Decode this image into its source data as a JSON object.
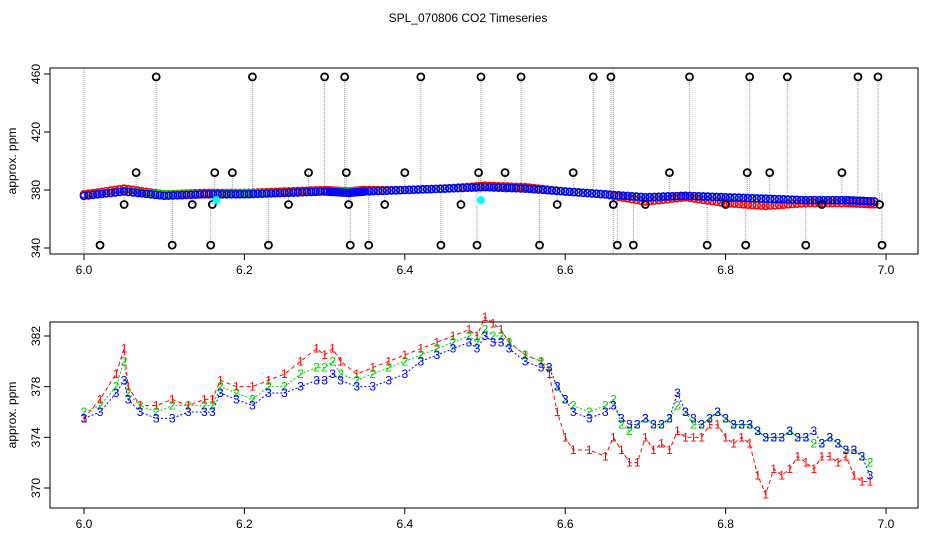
{
  "chart_data": [
    {
      "type": "scatter",
      "title": "SPL_070806  CO2 Timeseries",
      "xlabel": "",
      "ylabel": "approx. ppm",
      "xlim": [
        6.0,
        7.0
      ],
      "ylim": [
        340,
        460
      ],
      "x_ticks": [
        "6.0",
        "6.2",
        "6.4",
        "6.6",
        "6.8",
        "7.0"
      ],
      "y_ticks": [
        "340",
        "380",
        "420",
        "460"
      ],
      "colors": {
        "series1": "#ff0000",
        "series2": "#00cc00",
        "series3": "#0000ff",
        "spike": "#000000",
        "marker": "#00ffff",
        "dropline": "#999999"
      },
      "series": [
        {
          "name": "1",
          "color": "#ff0000",
          "x": [
            6.0,
            6.05,
            6.1,
            6.15,
            6.2,
            6.25,
            6.3,
            6.33,
            6.35,
            6.4,
            6.45,
            6.5,
            6.55,
            6.6,
            6.65,
            6.7,
            6.75,
            6.8,
            6.85,
            6.9,
            6.95,
            6.99
          ],
          "y": [
            377,
            381,
            377,
            378,
            378,
            379,
            380,
            379,
            380,
            380,
            381,
            383,
            382,
            379,
            377,
            372,
            375,
            371,
            369,
            371,
            371,
            370
          ]
        },
        {
          "name": "2",
          "color": "#00cc00",
          "x": [
            6.0,
            6.05,
            6.1,
            6.15,
            6.2,
            6.25,
            6.3,
            6.33,
            6.35,
            6.4,
            6.45,
            6.5,
            6.55,
            6.6,
            6.65,
            6.7,
            6.75,
            6.8,
            6.85,
            6.9,
            6.95,
            6.99
          ],
          "y": [
            376,
            379,
            377,
            377,
            378,
            378,
            379,
            379,
            379,
            380,
            381,
            382,
            381,
            379,
            377,
            375,
            376,
            375,
            374,
            373,
            373,
            372
          ]
        },
        {
          "name": "3",
          "color": "#0000ff",
          "x": [
            6.0,
            6.05,
            6.1,
            6.15,
            6.2,
            6.25,
            6.3,
            6.33,
            6.35,
            6.4,
            6.45,
            6.5,
            6.55,
            6.6,
            6.65,
            6.7,
            6.75,
            6.8,
            6.85,
            6.9,
            6.95,
            6.99
          ],
          "y": [
            376,
            379,
            376,
            377,
            377,
            378,
            379,
            378,
            379,
            380,
            381,
            382,
            381,
            379,
            377,
            375,
            376,
            375,
            374,
            373,
            373,
            372
          ]
        }
      ],
      "spikes": {
        "x": [
          6.02,
          6.05,
          6.065,
          6.09,
          6.11,
          6.135,
          6.158,
          6.16,
          6.163,
          6.185,
          6.21,
          6.23,
          6.255,
          6.28,
          6.3,
          6.325,
          6.327,
          6.33,
          6.332,
          6.355,
          6.375,
          6.4,
          6.42,
          6.445,
          6.47,
          6.49,
          6.492,
          6.495,
          6.525,
          6.545,
          6.568,
          6.59,
          6.61,
          6.635,
          6.657,
          6.66,
          6.665,
          6.685,
          6.7,
          6.73,
          6.755,
          6.777,
          6.8,
          6.825,
          6.827,
          6.83,
          6.855,
          6.877,
          6.9,
          6.92,
          6.945,
          6.965,
          6.99,
          6.992,
          6.995
        ],
        "y": [
          342,
          370,
          392,
          458,
          342,
          370,
          342,
          370,
          392,
          392,
          458,
          342,
          370,
          392,
          458,
          458,
          392,
          370,
          342,
          342,
          370,
          392,
          458,
          342,
          370,
          342,
          392,
          458,
          392,
          458,
          342,
          370,
          392,
          458,
          458,
          370,
          342,
          342,
          370,
          392,
          458,
          342,
          370,
          342,
          392,
          458,
          392,
          458,
          342,
          370,
          392,
          458,
          458,
          370,
          342
        ]
      },
      "cyan_markers": {
        "x": [
          6.165,
          6.495
        ],
        "y": [
          373,
          373
        ]
      }
    },
    {
      "type": "line",
      "title": "",
      "xlabel": "",
      "ylabel": "approx. ppm",
      "xlim": [
        6.0,
        7.0
      ],
      "ylim": [
        369,
        384
      ],
      "x_ticks": [
        "6.0",
        "6.2",
        "6.4",
        "6.6",
        "6.8",
        "7.0"
      ],
      "y_ticks": [
        "370",
        "374",
        "378",
        "382"
      ],
      "point_labels": [
        "1",
        "2",
        "3"
      ],
      "series": [
        {
          "name": "1",
          "color": "#ff0000",
          "x": [
            6.0,
            6.02,
            6.04,
            6.05,
            6.055,
            6.07,
            6.09,
            6.11,
            6.13,
            6.15,
            6.16,
            6.17,
            6.19,
            6.21,
            6.23,
            6.25,
            6.27,
            6.29,
            6.3,
            6.31,
            6.32,
            6.34,
            6.36,
            6.38,
            6.4,
            6.42,
            6.44,
            6.46,
            6.48,
            6.49,
            6.5,
            6.51,
            6.52,
            6.53,
            6.55,
            6.57,
            6.58,
            6.59,
            6.6,
            6.61,
            6.63,
            6.65,
            6.66,
            6.67,
            6.68,
            6.69,
            6.7,
            6.71,
            6.72,
            6.73,
            6.74,
            6.75,
            6.76,
            6.77,
            6.78,
            6.79,
            6.8,
            6.81,
            6.82,
            6.83,
            6.84,
            6.85,
            6.86,
            6.87,
            6.88,
            6.89,
            6.9,
            6.91,
            6.92,
            6.93,
            6.94,
            6.95,
            6.96,
            6.97,
            6.98
          ],
          "y": [
            375.5,
            377,
            379,
            381,
            378,
            376.5,
            376.5,
            377,
            376.5,
            377,
            377,
            378.5,
            378,
            378,
            378.5,
            379,
            380,
            381,
            380.5,
            381,
            380,
            379,
            379.5,
            380,
            380.5,
            381,
            381.5,
            382,
            382.5,
            382,
            383.5,
            383,
            382.5,
            381.5,
            380.5,
            380,
            379,
            376,
            374,
            373,
            373,
            372.5,
            374,
            373,
            372,
            372,
            374,
            373,
            373.5,
            373,
            374.5,
            374,
            374,
            374,
            375,
            375,
            374,
            373.5,
            374,
            373.5,
            371,
            369.5,
            371.5,
            371,
            371.5,
            372.5,
            372,
            371.5,
            372.5,
            372.5,
            372,
            372.5,
            371,
            370.5,
            370.5
          ]
        },
        {
          "name": "2",
          "color": "#00cc00",
          "x": [
            6.0,
            6.02,
            6.04,
            6.05,
            6.055,
            6.07,
            6.09,
            6.11,
            6.13,
            6.15,
            6.16,
            6.17,
            6.19,
            6.21,
            6.23,
            6.25,
            6.27,
            6.29,
            6.3,
            6.31,
            6.32,
            6.34,
            6.36,
            6.38,
            6.4,
            6.42,
            6.44,
            6.46,
            6.48,
            6.49,
            6.5,
            6.51,
            6.52,
            6.53,
            6.55,
            6.57,
            6.58,
            6.59,
            6.6,
            6.61,
            6.63,
            6.65,
            6.66,
            6.67,
            6.68,
            6.69,
            6.7,
            6.71,
            6.72,
            6.73,
            6.74,
            6.75,
            6.76,
            6.77,
            6.78,
            6.79,
            6.8,
            6.81,
            6.82,
            6.83,
            6.84,
            6.85,
            6.86,
            6.87,
            6.88,
            6.89,
            6.9,
            6.91,
            6.92,
            6.93,
            6.94,
            6.95,
            6.96,
            6.97,
            6.98
          ],
          "y": [
            376,
            376.5,
            378,
            380,
            377.5,
            376.5,
            376,
            376.5,
            376.5,
            376.5,
            376.5,
            378,
            377.5,
            377,
            378,
            378,
            379,
            379.5,
            379.5,
            380,
            379,
            378.5,
            379,
            379.5,
            380,
            380.5,
            381,
            381.5,
            382,
            381.5,
            382.5,
            382,
            382,
            381.5,
            380.5,
            380,
            379.5,
            378,
            377,
            376.5,
            376,
            376.5,
            377,
            375,
            374.5,
            375,
            375.5,
            375,
            375,
            375.5,
            376.5,
            376,
            375,
            375,
            375.5,
            376,
            375.5,
            375,
            375,
            375,
            374.5,
            374,
            374,
            374,
            374.5,
            374,
            374,
            373.5,
            373.5,
            374,
            373.5,
            373,
            373,
            372.5,
            372
          ]
        },
        {
          "name": "3",
          "color": "#0000ff",
          "x": [
            6.0,
            6.02,
            6.04,
            6.05,
            6.055,
            6.07,
            6.09,
            6.11,
            6.13,
            6.15,
            6.16,
            6.17,
            6.19,
            6.21,
            6.23,
            6.25,
            6.27,
            6.29,
            6.3,
            6.31,
            6.32,
            6.34,
            6.36,
            6.38,
            6.4,
            6.42,
            6.44,
            6.46,
            6.48,
            6.49,
            6.5,
            6.51,
            6.52,
            6.53,
            6.55,
            6.57,
            6.58,
            6.59,
            6.6,
            6.61,
            6.63,
            6.65,
            6.66,
            6.67,
            6.68,
            6.69,
            6.7,
            6.71,
            6.72,
            6.73,
            6.74,
            6.75,
            6.76,
            6.77,
            6.78,
            6.79,
            6.8,
            6.81,
            6.82,
            6.83,
            6.84,
            6.85,
            6.86,
            6.87,
            6.88,
            6.89,
            6.9,
            6.91,
            6.92,
            6.93,
            6.94,
            6.95,
            6.96,
            6.97,
            6.98
          ],
          "y": [
            375.5,
            376,
            377.5,
            378.5,
            377,
            376,
            375.5,
            375.5,
            376,
            376,
            376,
            377.5,
            377,
            376.5,
            377.5,
            377.5,
            378,
            378.5,
            378.5,
            379,
            378.5,
            378,
            378,
            378.5,
            379,
            380,
            380.5,
            381,
            381.5,
            381,
            382,
            381.5,
            381.5,
            381,
            380,
            379.5,
            379.5,
            378,
            377,
            376,
            375.5,
            376,
            376.5,
            375.5,
            375,
            375,
            375.5,
            375,
            375,
            375.5,
            377.5,
            376,
            375.5,
            375,
            375.5,
            376,
            375.5,
            375,
            375,
            375,
            374.5,
            374,
            374,
            374,
            374.5,
            374,
            374,
            374.5,
            373.5,
            374,
            373.5,
            373,
            373,
            372.5,
            371
          ]
        }
      ]
    }
  ]
}
